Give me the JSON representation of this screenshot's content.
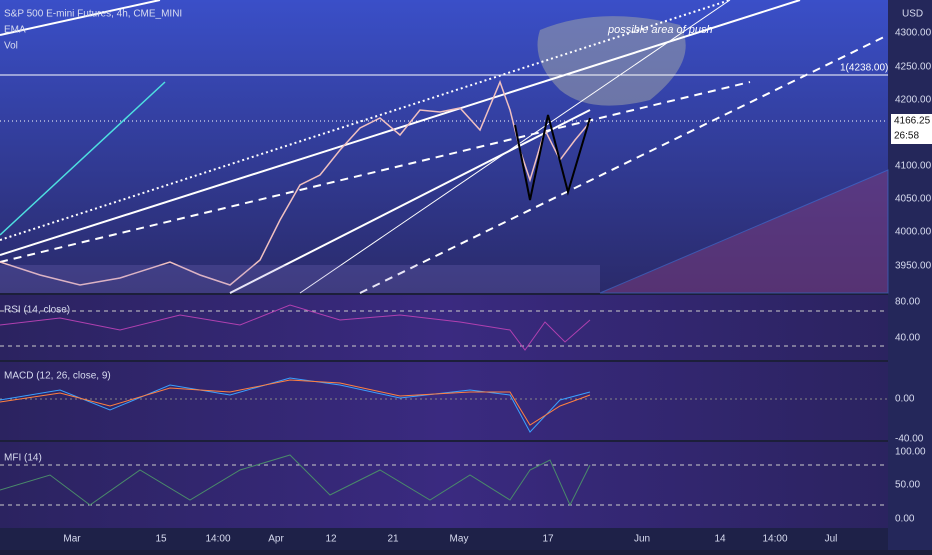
{
  "header": {
    "title": "S&P 500 E-mini Futures, 4h, CME_MINI",
    "indicators": [
      "EMA",
      "Vol"
    ]
  },
  "price_axis": {
    "currency": "USD",
    "labels": [
      "4300.00",
      "4250.00",
      "4200.00",
      "4100.00",
      "4050.00",
      "4000.00",
      "3950.00"
    ],
    "last_price": "4166.25",
    "countdown": "26:58"
  },
  "annotations": {
    "level": "1(4238.00)",
    "note": "possible area of push"
  },
  "panels": [
    {
      "title": "RSI (14, close)",
      "labels": [
        "80.00",
        "40.00"
      ]
    },
    {
      "title": "MACD (12, 26, close, 9)",
      "labels": [
        "0.00",
        "-40.00"
      ]
    },
    {
      "title": "MFI (14)",
      "labels": [
        "100.00",
        "50.00",
        "0.00"
      ]
    }
  ],
  "time_axis": [
    "Mar",
    "15",
    "14:00",
    "Apr",
    "12",
    "21",
    "May",
    "17",
    "Jun",
    "14",
    "14:00",
    "Jul"
  ]
}
